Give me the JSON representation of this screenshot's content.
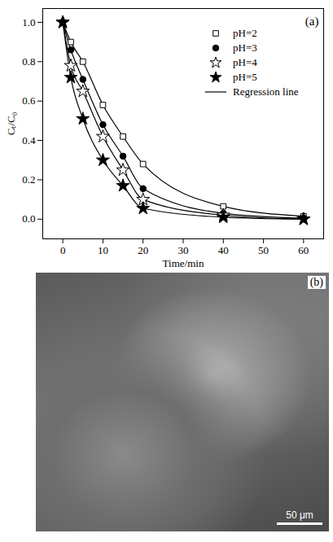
{
  "chart_data": {
    "type": "scatter",
    "title": "(a)",
    "x_label": "Time/min",
    "y_label": "Cₜ/C₀",
    "x": [
      0,
      2,
      5,
      10,
      15,
      20,
      40,
      60
    ],
    "series": [
      {
        "name": "pH=2",
        "color": "#000000",
        "marker": "square-open",
        "values": [
          1.0,
          0.9,
          0.8,
          0.58,
          0.42,
          0.28,
          0.065,
          0.015
        ]
      },
      {
        "name": "pH=3",
        "color": "#000000",
        "marker": "circle",
        "values": [
          1.0,
          0.86,
          0.71,
          0.48,
          0.32,
          0.155,
          0.03,
          0.005
        ]
      },
      {
        "name": "pH=4",
        "color": "#000000",
        "marker": "star-open",
        "values": [
          1.0,
          0.78,
          0.65,
          0.42,
          0.25,
          0.1,
          0.02,
          0.0
        ]
      },
      {
        "name": "pH=5",
        "color": "#000000",
        "marker": "star",
        "values": [
          1.0,
          0.72,
          0.51,
          0.3,
          0.17,
          0.055,
          0.01,
          0.0
        ]
      }
    ],
    "fit_line": {
      "label": "Regression line",
      "color": "#000000",
      "line_style": "solid"
    },
    "xlim": [
      -5,
      65
    ],
    "xticks": [
      0,
      10,
      20,
      30,
      40,
      50,
      60
    ],
    "ylim": [
      -0.1,
      1.07
    ],
    "yticks": [
      {
        "value": 0.0,
        "label": "0.0"
      },
      {
        "value": 0.2,
        "label": "0.2"
      },
      {
        "value": 0.4,
        "label": "0.4"
      },
      {
        "value": 0.6,
        "label": "0.6"
      },
      {
        "value": 0.8,
        "label": "0.8"
      },
      {
        "value": 1.0,
        "label": "1.0"
      }
    ],
    "grid": false,
    "legend": "top-right"
  },
  "image_panel": {
    "label": "(b)",
    "scale_bar": "50 μm"
  }
}
